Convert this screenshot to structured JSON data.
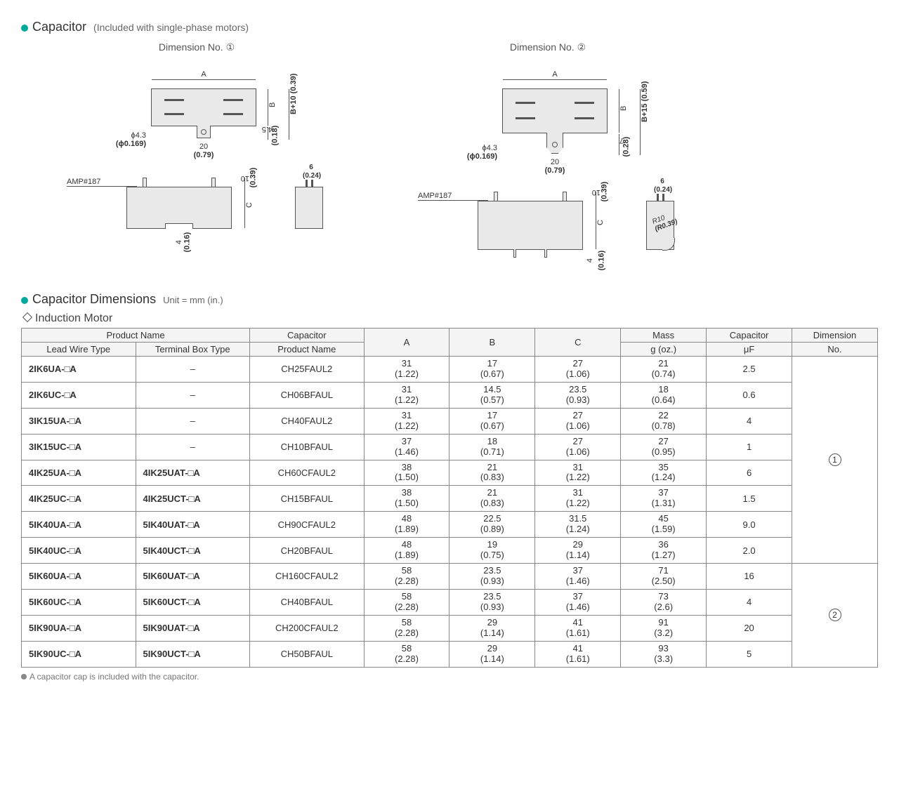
{
  "header1": {
    "title": "Capacitor",
    "paren": "(Included with single-phase motors)"
  },
  "diagrams": {
    "d1": {
      "label": "Dimension No. ①",
      "top": {
        "A": "A",
        "B": "B",
        "Bext": "B+10 (0.39)",
        "tabH": "4.5",
        "tabH2": "(0.18)",
        "tabW": "20",
        "tabW2": "(0.79)",
        "hole": "ϕ4.3",
        "hole2": "(ϕ0.169)"
      },
      "side": {
        "amp": "AMP#187",
        "pinH": "10",
        "pinH2": "(0.39)",
        "pinW": "6 (0.24)",
        "C": "C",
        "base": "4",
        "base2": "(0.16)"
      }
    },
    "d2": {
      "label": "Dimension No. ②",
      "top": {
        "A": "A",
        "B": "B",
        "Bext": "B+15 (0.59)",
        "tabH": "7",
        "tabH2": "(0.28)",
        "tabW": "20",
        "tabW2": "(0.79)",
        "hole": "ϕ4.3",
        "hole2": "(ϕ0.169)"
      },
      "side": {
        "amp": "AMP#187",
        "pinH": "10",
        "pinH2": "(0.39)",
        "pinW": "6 (0.24)",
        "C": "C",
        "base": "4",
        "base2": "(0.16)",
        "r10a": "R10",
        "r10b": "(R0.39)"
      }
    }
  },
  "header2": {
    "title": "Capacitor Dimensions",
    "unit": "Unit = mm (in.)"
  },
  "subhead": "Induction Motor",
  "table": {
    "head": {
      "pn": "Product Name",
      "lead": "Lead Wire Type",
      "term": "Terminal Box Type",
      "cap": "Capacitor",
      "capn": "Product Name",
      "A": "A",
      "B": "B",
      "C": "C",
      "mass": "Mass",
      "mass2": "g (oz.)",
      "uf": "Capacitor",
      "uf2": "μF",
      "dim": "Dimension",
      "dim2": "No."
    },
    "rows": [
      {
        "lead": "2IK6UA-□A",
        "term": "–",
        "cap": "CH25FAUL2",
        "A": "31",
        "Ai": "(1.22)",
        "B": "17",
        "Bi": "(0.67)",
        "C": "27",
        "Ci": "(1.06)",
        "m": "21",
        "mi": "(0.74)",
        "uf": "2.5"
      },
      {
        "lead": "2IK6UC-□A",
        "term": "–",
        "cap": "CH06BFAUL",
        "A": "31",
        "Ai": "(1.22)",
        "B": "14.5",
        "Bi": "(0.57)",
        "C": "23.5",
        "Ci": "(0.93)",
        "m": "18",
        "mi": "(0.64)",
        "uf": "0.6"
      },
      {
        "lead": "3IK15UA-□A",
        "term": "–",
        "cap": "CH40FAUL2",
        "A": "31",
        "Ai": "(1.22)",
        "B": "17",
        "Bi": "(0.67)",
        "C": "27",
        "Ci": "(1.06)",
        "m": "22",
        "mi": "(0.78)",
        "uf": "4"
      },
      {
        "lead": "3IK15UC-□A",
        "term": "–",
        "cap": "CH10BFAUL",
        "A": "37",
        "Ai": "(1.46)",
        "B": "18",
        "Bi": "(0.71)",
        "C": "27",
        "Ci": "(1.06)",
        "m": "27",
        "mi": "(0.95)",
        "uf": "1"
      },
      {
        "lead": "4IK25UA-□A",
        "term": "4IK25UAT-□A",
        "cap": "CH60CFAUL2",
        "A": "38",
        "Ai": "(1.50)",
        "B": "21",
        "Bi": "(0.83)",
        "C": "31",
        "Ci": "(1.22)",
        "m": "35",
        "mi": "(1.24)",
        "uf": "6"
      },
      {
        "lead": "4IK25UC-□A",
        "term": "4IK25UCT-□A",
        "cap": "CH15BFAUL",
        "A": "38",
        "Ai": "(1.50)",
        "B": "21",
        "Bi": "(0.83)",
        "C": "31",
        "Ci": "(1.22)",
        "m": "37",
        "mi": "(1.31)",
        "uf": "1.5"
      },
      {
        "lead": "5IK40UA-□A",
        "term": "5IK40UAT-□A",
        "cap": "CH90CFAUL2",
        "A": "48",
        "Ai": "(1.89)",
        "B": "22.5",
        "Bi": "(0.89)",
        "C": "31.5",
        "Ci": "(1.24)",
        "m": "45",
        "mi": "(1.59)",
        "uf": "9.0"
      },
      {
        "lead": "5IK40UC-□A",
        "term": "5IK40UCT-□A",
        "cap": "CH20BFAUL",
        "A": "48",
        "Ai": "(1.89)",
        "B": "19",
        "Bi": "(0.75)",
        "C": "29",
        "Ci": "(1.14)",
        "m": "36",
        "mi": "(1.27)",
        "uf": "2.0"
      },
      {
        "lead": "5IK60UA-□A",
        "term": "5IK60UAT-□A",
        "cap": "CH160CFAUL2",
        "A": "58",
        "Ai": "(2.28)",
        "B": "23.5",
        "Bi": "(0.93)",
        "C": "37",
        "Ci": "(1.46)",
        "m": "71",
        "mi": "(2.50)",
        "uf": "16"
      },
      {
        "lead": "5IK60UC-□A",
        "term": "5IK60UCT-□A",
        "cap": "CH40BFAUL",
        "A": "58",
        "Ai": "(2.28)",
        "B": "23.5",
        "Bi": "(0.93)",
        "C": "37",
        "Ci": "(1.46)",
        "m": "73",
        "mi": "(2.6)",
        "uf": "4"
      },
      {
        "lead": "5IK90UA-□A",
        "term": "5IK90UAT-□A",
        "cap": "CH200CFAUL2",
        "A": "58",
        "Ai": "(2.28)",
        "B": "29",
        "Bi": "(1.14)",
        "C": "41",
        "Ci": "(1.61)",
        "m": "91",
        "mi": "(3.2)",
        "uf": "20"
      },
      {
        "lead": "5IK90UC-□A",
        "term": "5IK90UCT-□A",
        "cap": "CH50BFAUL",
        "A": "58",
        "Ai": "(2.28)",
        "B": "29",
        "Bi": "(1.14)",
        "C": "41",
        "Ci": "(1.61)",
        "m": "93",
        "mi": "(3.3)",
        "uf": "5"
      }
    ],
    "dimno": {
      "g1": "①",
      "g2": "②"
    }
  },
  "footnote": "A capacitor cap is included with the capacitor."
}
